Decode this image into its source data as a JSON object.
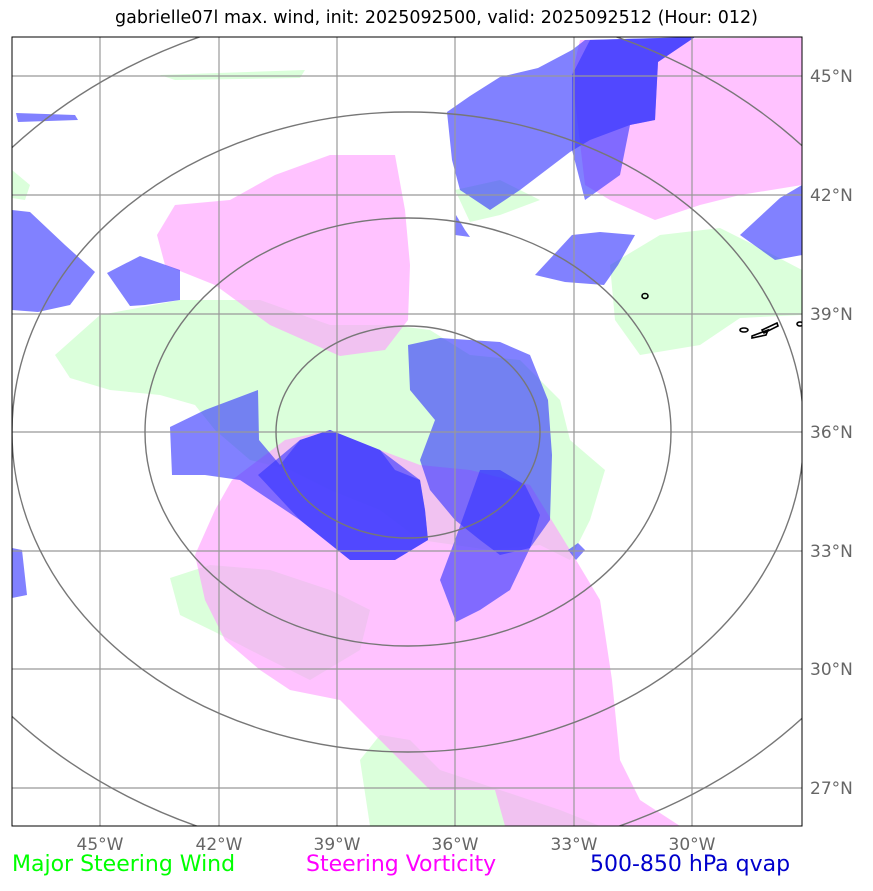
{
  "title": "gabrielle07l max. wind, init: 2025092500, valid: 2025092512 (Hour: 012)",
  "map": {
    "lon_ticks": [
      "45°W",
      "42°W",
      "39°W",
      "36°W",
      "33°W",
      "30°W"
    ],
    "lat_ticks": [
      "45°N",
      "42°N",
      "39°N",
      "36°N",
      "33°N",
      "30°N",
      "27°N"
    ],
    "colors": {
      "wind": "#ccffcc",
      "vorticity": "#ff99ff",
      "qvap": "#3333ff",
      "grid": "#999999",
      "rings": "#777777"
    }
  },
  "legend": {
    "wind": "Major Steering Wind",
    "vorticity": "Steering Vorticity",
    "qvap": "500-850 hPa qvap"
  }
}
